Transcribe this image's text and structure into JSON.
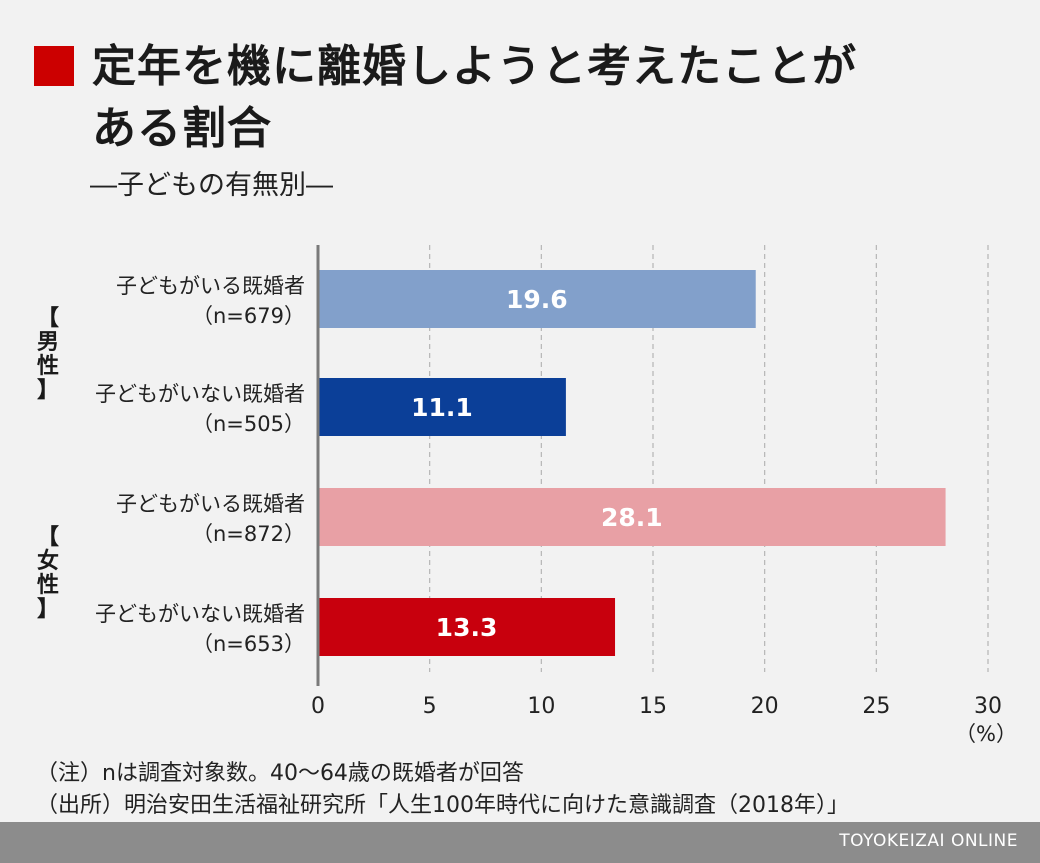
{
  "title": {
    "text": "定年を機に離婚しようと考えたことが\nある割合",
    "subtitle": "―子どもの有無別―",
    "accent": "#cc0000"
  },
  "chart_data": {
    "type": "bar",
    "orientation": "horizontal",
    "groups": [
      {
        "label": "【男性】",
        "rows": [
          0,
          1
        ]
      },
      {
        "label": "【女性】",
        "rows": [
          2,
          3
        ]
      }
    ],
    "categories": [
      {
        "line1": "子どもがいる既婚者",
        "line2": "（n=679）"
      },
      {
        "line1": "子どもがいない既婚者",
        "line2": "（n=505）"
      },
      {
        "line1": "子どもがいる既婚者",
        "line2": "（n=872）"
      },
      {
        "line1": "子どもがいない既婚者",
        "line2": "（n=653）"
      }
    ],
    "values": [
      19.6,
      11.1,
      28.1,
      13.3
    ],
    "value_labels": [
      "19.6",
      "11.1",
      "28.1",
      "13.3"
    ],
    "colors": [
      "#82a0cb",
      "#0b3f98",
      "#e8a0a5",
      "#c8000d"
    ],
    "xlim": [
      0,
      30
    ],
    "ticks": [
      0,
      5,
      10,
      15,
      20,
      25,
      30
    ],
    "unit_label": "（%）",
    "grid": "vertical dashed"
  },
  "notes": [
    "（注）nは調査対象数。40〜64歳の既婚者が回答",
    "（出所）明治安田生活福祉研究所「人生100年時代に向けた意識調査（2018年）」"
  ],
  "footer": {
    "brand": "TOYOKEIZAI ONLINE"
  }
}
